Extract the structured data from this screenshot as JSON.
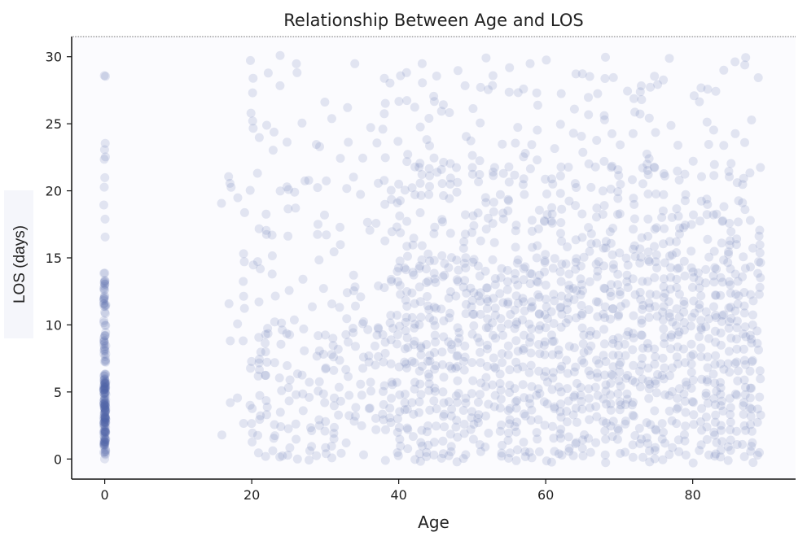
{
  "chart_data": {
    "type": "scatter",
    "title": "Relationship Between Age and LOS",
    "xlabel": "Age",
    "ylabel": "LOS (days)",
    "xlim": [
      -4.5,
      94
    ],
    "ylim": [
      -1.5,
      31.5
    ],
    "xticks": [
      0,
      20,
      40,
      60,
      80
    ],
    "yticks": [
      0,
      5,
      10,
      15,
      20,
      25,
      30
    ],
    "grid": false,
    "point_color": "#5262a6",
    "point_alpha": 0.15,
    "plot_background": "#fbfbfe",
    "density": [
      {
        "age_range": [
          0,
          0
        ],
        "los_range": [
          0,
          29
        ],
        "level": "medium",
        "note": "newborn cluster, densest LOS 1-6"
      },
      {
        "age_range": [
          16,
          20
        ],
        "los_range": [
          0,
          21
        ],
        "level": "low"
      },
      {
        "age_range": [
          20,
          40
        ],
        "los_range": [
          0,
          10
        ],
        "level": "medium"
      },
      {
        "age_range": [
          20,
          40
        ],
        "los_range": [
          10,
          30
        ],
        "level": "low"
      },
      {
        "age_range": [
          40,
          89
        ],
        "los_range": [
          0,
          15
        ],
        "level": "high"
      },
      {
        "age_range": [
          40,
          89
        ],
        "los_range": [
          15,
          22
        ],
        "level": "medium"
      },
      {
        "age_range": [
          40,
          89
        ],
        "los_range": [
          22,
          30
        ],
        "level": "low"
      }
    ]
  }
}
